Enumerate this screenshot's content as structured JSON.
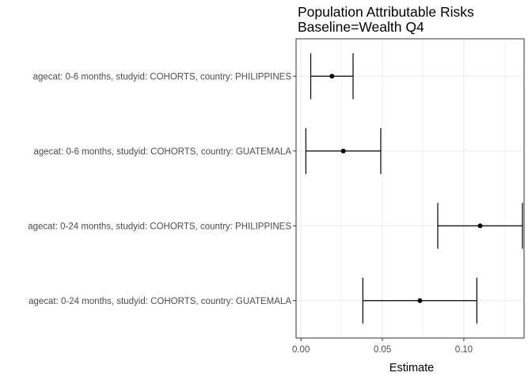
{
  "chart_data": {
    "type": "errorbar",
    "orientation": "horizontal",
    "title": "Population Attributable Risks",
    "subtitle": "Baseline=Wealth Q4",
    "xlabel": "Estimate",
    "ylabel": "",
    "xlim": [
      -0.003,
      0.137
    ],
    "xticks": [
      0.0,
      0.05,
      0.1
    ],
    "xtick_labels": [
      "0.00",
      "0.05",
      "0.10"
    ],
    "grid": true,
    "legend": "none",
    "categories": [
      "agecat: 0-6 months, studyid: COHORTS, country: PHILIPPINES",
      "agecat: 0-6 months, studyid: COHORTS, country: GUATEMALA",
      "agecat: 0-24 months, studyid: COHORTS, country: PHILIPPINES",
      "agecat: 0-24 months, studyid: COHORTS, country: GUATEMALA"
    ],
    "estimates": [
      0.019,
      0.026,
      0.11,
      0.073
    ],
    "lower": [
      0.006,
      0.003,
      0.084,
      0.038
    ],
    "upper": [
      0.032,
      0.049,
      0.136,
      0.108
    ],
    "colors": {
      "point": "#000000",
      "errorbar": "#000000",
      "grid": "#ebebeb",
      "panel_border": "#333333"
    }
  }
}
